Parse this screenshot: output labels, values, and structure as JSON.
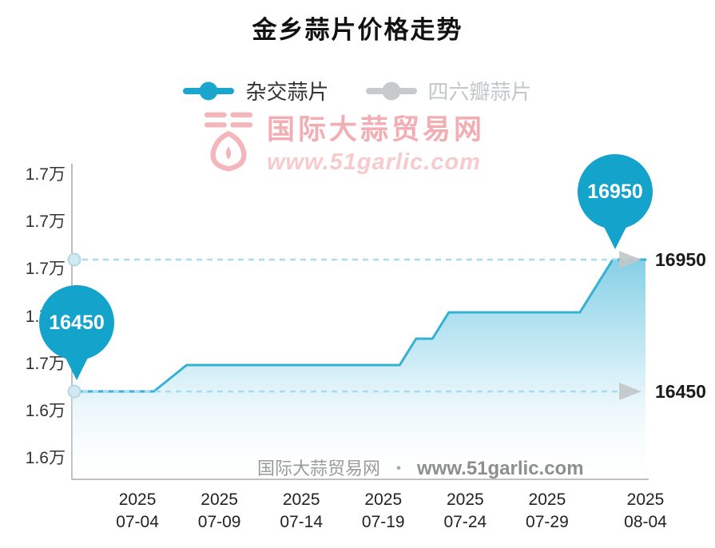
{
  "title": "金乡蒜片价格走势",
  "legend": {
    "items": [
      {
        "label": "杂交蒜片",
        "color": "#1ba7cd"
      },
      {
        "label": "四六瓣蒜片",
        "color": "#c6cacc"
      }
    ]
  },
  "watermark": {
    "site_name": "国际大蒜贸易网",
    "url": "www.51garlic.com"
  },
  "footer": {
    "site_name": "国际大蒜贸易网",
    "separator": "・",
    "url": "www.51garlic.com"
  },
  "chart_data": {
    "type": "area",
    "title": "金乡蒜片价格走势",
    "series": [
      {
        "name": "杂交蒜片",
        "color": "#35b1d3",
        "points": [
          [
            "06-30",
            16450
          ],
          [
            "07-05",
            16450
          ],
          [
            "07-07",
            16550
          ],
          [
            "07-20",
            16550
          ],
          [
            "07-21",
            16650
          ],
          [
            "07-22",
            16650
          ],
          [
            "07-23",
            16750
          ],
          [
            "07-31",
            16750
          ],
          [
            "08-02",
            16950
          ],
          [
            "08-04",
            16950
          ]
        ]
      }
    ],
    "x_ticks": [
      {
        "line1": "2025",
        "line2": "07-04"
      },
      {
        "line1": "2025",
        "line2": "07-09"
      },
      {
        "line1": "2025",
        "line2": "07-14"
      },
      {
        "line1": "2025",
        "line2": "07-19"
      },
      {
        "line1": "2025",
        "line2": "07-24"
      },
      {
        "line1": "2025",
        "line2": "07-29"
      },
      {
        "line1": "2025",
        "line2": "08-04"
      }
    ],
    "y_ticks": [
      "1.7万",
      "1.7万",
      "1.7万",
      "1.7万",
      "1.7万",
      "1.6万",
      "1.6万"
    ],
    "reference_lines": [
      {
        "value": 16950,
        "label": "16950"
      },
      {
        "value": 16450,
        "label": "16450"
      }
    ],
    "annotations": {
      "start_label": "16450",
      "end_label": "16950"
    },
    "legend_position": "top",
    "grid": false
  }
}
